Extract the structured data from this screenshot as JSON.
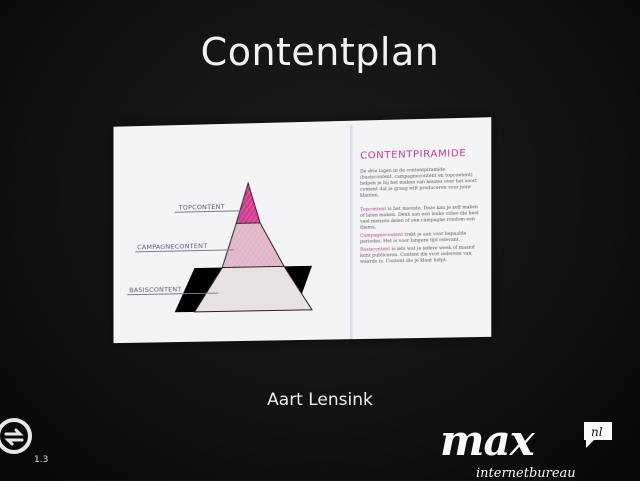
{
  "slide": {
    "title": "Contentplan",
    "author": "Aart Lensink"
  },
  "pyramid": {
    "tiers": [
      {
        "label": "TOPCONTENT",
        "color": "#d23d8f"
      },
      {
        "label": "CAMPAGNECONTENT",
        "color": "#e0b0c6"
      },
      {
        "label": "BASISCONTENT",
        "color": "#e7dcdf"
      }
    ]
  },
  "right_page": {
    "heading": "CONTENTPIRAMIDE",
    "para1": "De drie lagen in de contentpiramide (basiscontent, campagnecontent en topcontent) helpen je bij het maken van keuzes over het soort content dat je graag wilt produceren voor jouw klanten.",
    "para2_hl": "Topcontent",
    "para2": " is het mooiste. Deze kan je zelf maken of laten maken. Denk aan een leuke video die heel veel mensen delen of een campagne rondom een thema.",
    "para3_hl": "Campagnecontent",
    "para3": " trekt je aan voor bepaalde periodes. Het is voor langere tijd relevant.",
    "para4_hl": "Basiscontent",
    "para4": " is iets wat je iedere week of maand kunt publiceren. Content die voor iedereen van waarde is. Content die je klant helpt."
  },
  "footer": {
    "version": "1.3",
    "logo_text": "max",
    "logo_badge": "nl",
    "logo_sub": "internetbureau"
  },
  "colors": {
    "accent": "#c23a8d",
    "background": "#111111"
  }
}
